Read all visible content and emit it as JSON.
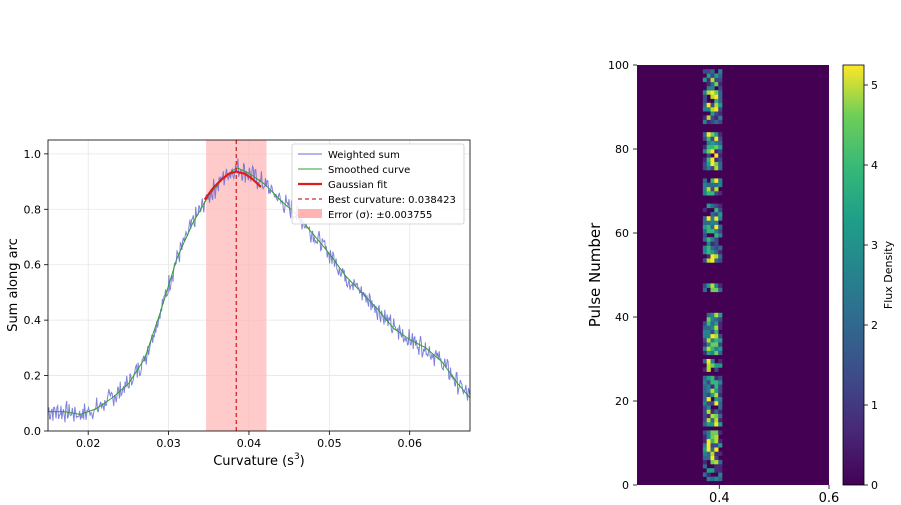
{
  "chart_data": [
    {
      "type": "line",
      "xlabel_main": "Curvature (s",
      "xlabel_sup": "3",
      "xlabel_close": ")",
      "ylabel": "Sum along arc",
      "xlim": [
        0.015,
        0.0675
      ],
      "ylim": [
        0.0,
        1.05
      ],
      "xticks": [
        0.02,
        0.03,
        0.04,
        0.05,
        0.06
      ],
      "xtick_labels": [
        "0.02",
        "0.03",
        "0.04",
        "0.05",
        "0.06"
      ],
      "yticks": [
        0.0,
        0.2,
        0.4,
        0.6,
        0.8,
        1.0
      ],
      "ytick_labels": [
        "0.0",
        "0.2",
        "0.4",
        "0.6",
        "0.8",
        "1.0"
      ],
      "grid": true,
      "legend_position": "top-right",
      "series": [
        {
          "name": "Weighted sum",
          "style": "thin noisy line",
          "color": "#6b6bd6",
          "x": [
            0.015,
            0.017,
            0.019,
            0.021,
            0.023,
            0.025,
            0.027,
            0.029,
            0.031,
            0.033,
            0.035,
            0.037,
            0.0385,
            0.04,
            0.042,
            0.044,
            0.046,
            0.048,
            0.05,
            0.052,
            0.054,
            0.056,
            0.058,
            0.06,
            0.062,
            0.064,
            0.066,
            0.0675
          ],
          "y": [
            0.07,
            0.07,
            0.06,
            0.08,
            0.12,
            0.17,
            0.26,
            0.43,
            0.62,
            0.75,
            0.85,
            0.92,
            0.95,
            0.93,
            0.89,
            0.83,
            0.78,
            0.71,
            0.64,
            0.56,
            0.5,
            0.44,
            0.37,
            0.33,
            0.3,
            0.25,
            0.17,
            0.12
          ]
        },
        {
          "name": "Smoothed curve",
          "style": "line",
          "color": "#2ca02c",
          "x": [
            0.015,
            0.017,
            0.019,
            0.021,
            0.023,
            0.025,
            0.027,
            0.029,
            0.031,
            0.033,
            0.035,
            0.037,
            0.0385,
            0.04,
            0.042,
            0.044,
            0.046,
            0.048,
            0.05,
            0.052,
            0.054,
            0.056,
            0.058,
            0.06,
            0.062,
            0.064,
            0.066,
            0.0675
          ],
          "y": [
            0.07,
            0.07,
            0.06,
            0.08,
            0.12,
            0.17,
            0.26,
            0.43,
            0.62,
            0.75,
            0.85,
            0.92,
            0.95,
            0.93,
            0.89,
            0.83,
            0.78,
            0.71,
            0.64,
            0.56,
            0.5,
            0.44,
            0.37,
            0.33,
            0.3,
            0.25,
            0.17,
            0.12
          ]
        },
        {
          "name": "Gaussian fit",
          "style": "thick line",
          "color": "#e31a1c",
          "x": [
            0.0345,
            0.0355,
            0.0365,
            0.0375,
            0.0384,
            0.0395,
            0.0405,
            0.0415
          ],
          "y": [
            0.835,
            0.875,
            0.905,
            0.928,
            0.936,
            0.928,
            0.908,
            0.88
          ]
        }
      ],
      "best_curvature": 0.038423,
      "error_sigma": 0.003755,
      "legend_labels": [
        "Weighted sum",
        "Smoothed curve",
        "Gaussian fit",
        "Best curvature: 0.038423",
        "Error (σ): ±0.003755"
      ]
    },
    {
      "type": "heatmap",
      "ylabel": "Pulse Number",
      "xlim": [
        0.25,
        0.6
      ],
      "ylim": [
        0,
        100
      ],
      "xticks": [
        0.4,
        0.6
      ],
      "xtick_labels": [
        "0.4",
        "0.6"
      ],
      "yticks": [
        0,
        20,
        40,
        60,
        80,
        100
      ],
      "ytick_labels": [
        "0",
        "20",
        "40",
        "60",
        "80",
        "100"
      ],
      "signal_x_range": [
        0.37,
        0.405
      ],
      "colormap": "viridis",
      "colorbar_label": "Flux Density",
      "colorbar_range": [
        0,
        5.25
      ],
      "colorbar_ticks": [
        0,
        1,
        2,
        3,
        4,
        5
      ],
      "colorbar_tick_labels": [
        "0",
        "1",
        "2",
        "3",
        "4",
        "5"
      ]
    }
  ]
}
